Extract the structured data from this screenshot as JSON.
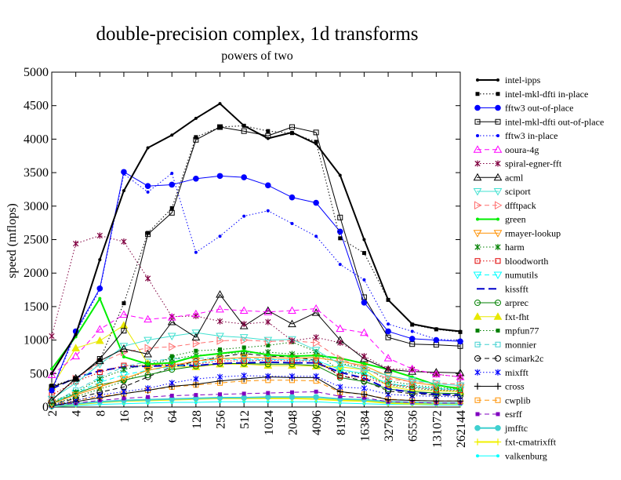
{
  "chart_data": {
    "type": "line",
    "title": "double-precision complex, 1d transforms",
    "subtitle": "powers of two",
    "xlabel": "",
    "ylabel": "speed (mflops)",
    "ylim": [
      0,
      5000
    ],
    "yticks": [
      0,
      500,
      1000,
      1500,
      2000,
      2500,
      3000,
      3500,
      4000,
      4500,
      5000
    ],
    "categories": [
      "2",
      "4",
      "8",
      "16",
      "32",
      "64",
      "128",
      "256",
      "512",
      "1024",
      "2048",
      "4096",
      "8192",
      "16384",
      "32768",
      "65536",
      "131072",
      "262144"
    ],
    "grid": false,
    "legend_position": "right",
    "series": [
      {
        "name": "intel-ipps",
        "color": "#000000",
        "dash": "solid",
        "width": 2,
        "marker": "dot",
        "values": [
          500,
          1080,
          2200,
          3230,
          3870,
          4060,
          4310,
          4530,
          4200,
          4010,
          4100,
          3930,
          3460,
          2500,
          1600,
          1240,
          1170,
          1130
        ]
      },
      {
        "name": "intel-mkl-dfti in-place",
        "color": "#000000",
        "dash": "dot",
        "width": 1,
        "marker": "square-filled",
        "values": [
          320,
          420,
          700,
          1550,
          2600,
          2970,
          4030,
          4180,
          4200,
          4120,
          4090,
          3960,
          2520,
          2300,
          1600,
          1230,
          1160,
          1120
        ]
      },
      {
        "name": "fftw3 out-of-place",
        "color": "#0000ff",
        "dash": "solid",
        "width": 1,
        "marker": "circle-filled",
        "values": [
          250,
          1130,
          1770,
          3510,
          3300,
          3320,
          3410,
          3450,
          3430,
          3310,
          3130,
          3050,
          2620,
          1560,
          1130,
          1020,
          1000,
          980
        ]
      },
      {
        "name": "intel-mkl-dfti out-of-place",
        "color": "#000000",
        "dash": "solid",
        "width": 1,
        "marker": "square-open",
        "values": [
          300,
          420,
          720,
          1140,
          2580,
          2900,
          3990,
          4180,
          4120,
          4050,
          4180,
          4100,
          2830,
          1640,
          1040,
          940,
          930,
          910
        ]
      },
      {
        "name": "fftw3 in-place",
        "color": "#0000ff",
        "dash": "dot",
        "width": 1,
        "marker": "dot",
        "values": [
          240,
          1100,
          1750,
          3480,
          3210,
          3490,
          2310,
          2550,
          2850,
          2930,
          2740,
          2550,
          2130,
          1900,
          1240,
          1130,
          1010,
          1000
        ]
      },
      {
        "name": "ooura-4g",
        "color": "#ff00ff",
        "dash": "dash",
        "width": 1,
        "marker": "triangle-open",
        "values": [
          480,
          760,
          1160,
          1380,
          1310,
          1340,
          1390,
          1460,
          1440,
          1420,
          1440,
          1470,
          1170,
          1110,
          730,
          570,
          490,
          450
        ]
      },
      {
        "name": "spiral-egner-fft",
        "color": "#800040",
        "dash": "dot",
        "width": 1,
        "marker": "star",
        "values": [
          1060,
          2440,
          2560,
          2470,
          1920,
          1350,
          1360,
          1280,
          1240,
          1270,
          990,
          1040,
          960,
          760,
          570,
          560,
          490,
          450
        ]
      },
      {
        "name": "acml",
        "color": "#000000",
        "dash": "solid",
        "width": 1,
        "marker": "triangle-open",
        "values": [
          100,
          430,
          690,
          870,
          790,
          1270,
          1040,
          1680,
          1210,
          1440,
          1240,
          1410,
          1000,
          720,
          560,
          530,
          520,
          510
        ]
      },
      {
        "name": "sciport",
        "color": "#40e0d0",
        "dash": "solid",
        "width": 1,
        "marker": "triangle-down-open",
        "values": [
          120,
          360,
          640,
          910,
          1000,
          1060,
          1110,
          1060,
          1040,
          1000,
          1010,
          850,
          640,
          560,
          470,
          400,
          350,
          320
        ]
      },
      {
        "name": "dfftpack",
        "color": "#ff6f6f",
        "dash": "dash",
        "width": 1,
        "marker": "triangle-right-open",
        "values": [
          110,
          420,
          660,
          820,
          880,
          900,
          950,
          990,
          1000,
          980,
          990,
          960,
          720,
          580,
          420,
          380,
          360,
          340
        ]
      },
      {
        "name": "green",
        "color": "#00ee00",
        "dash": "solid",
        "width": 2,
        "marker": "dot",
        "values": [
          570,
          1050,
          1620,
          750,
          640,
          660,
          760,
          800,
          840,
          780,
          760,
          770,
          730,
          650,
          560,
          450,
          330,
          270
        ]
      },
      {
        "name": "rmayer-lookup",
        "color": "#ff9000",
        "dash": "solid",
        "width": 1,
        "marker": "triangle-down-open",
        "values": [
          50,
          180,
          300,
          420,
          550,
          620,
          690,
          720,
          740,
          740,
          730,
          740,
          680,
          620,
          460,
          370,
          320,
          290
        ]
      },
      {
        "name": "harm",
        "color": "#008000",
        "dash": "dot",
        "width": 1,
        "marker": "star",
        "values": [
          80,
          220,
          420,
          560,
          640,
          720,
          770,
          800,
          810,
          820,
          790,
          820,
          650,
          600,
          390,
          330,
          290,
          270
        ]
      },
      {
        "name": "bloodworth",
        "color": "#e00000",
        "dash": "dot",
        "width": 1,
        "marker": "square-open",
        "values": [
          180,
          380,
          520,
          620,
          620,
          640,
          640,
          690,
          690,
          700,
          690,
          690,
          460,
          440,
          340,
          300,
          260,
          250
        ]
      },
      {
        "name": "numutils",
        "color": "#00ffff",
        "dash": "dash",
        "width": 1,
        "marker": "triangle-down-open",
        "values": [
          60,
          210,
          370,
          480,
          550,
          600,
          650,
          720,
          700,
          710,
          710,
          700,
          560,
          500,
          350,
          310,
          270,
          260
        ]
      },
      {
        "name": "kissfft",
        "color": "#0000cc",
        "dash": "longdash",
        "width": 2,
        "marker": "none",
        "values": [
          270,
          440,
          540,
          600,
          610,
          620,
          620,
          650,
          660,
          670,
          660,
          660,
          520,
          430,
          270,
          220,
          190,
          180
        ]
      },
      {
        "name": "arprec",
        "color": "#008000",
        "dash": "solid",
        "width": 1,
        "marker": "circle-open",
        "values": [
          60,
          200,
          330,
          400,
          480,
          560,
          610,
          650,
          650,
          640,
          640,
          620,
          440,
          380,
          270,
          230,
          210,
          200
        ]
      },
      {
        "name": "fxt-fht",
        "color": "#e8e800",
        "dash": "solid",
        "width": 1,
        "marker": "triangle-filled",
        "values": [
          300,
          880,
          990,
          1220,
          650,
          600,
          600,
          640,
          640,
          620,
          620,
          610,
          600,
          560,
          310,
          250,
          240,
          230
        ]
      },
      {
        "name": "mpfun77",
        "color": "#008000",
        "dash": "dot",
        "width": 1,
        "marker": "square-filled",
        "values": [
          40,
          150,
          270,
          380,
          560,
          760,
          840,
          860,
          890,
          920,
          970,
          830,
          530,
          490,
          330,
          280,
          250,
          240
        ]
      },
      {
        "name": "monnier",
        "color": "#40d0d0",
        "dash": "dash",
        "width": 1,
        "marker": "square-open",
        "values": [
          60,
          250,
          440,
          600,
          680,
          720,
          730,
          730,
          720,
          720,
          700,
          700,
          560,
          500,
          350,
          300,
          280,
          260
        ]
      },
      {
        "name": "scimark2c",
        "color": "#000000",
        "dash": "dash",
        "width": 1,
        "marker": "circle-open",
        "values": [
          40,
          130,
          220,
          300,
          450,
          600,
          680,
          750,
          800,
          760,
          750,
          700,
          470,
          390,
          240,
          200,
          180,
          170
        ]
      },
      {
        "name": "mixfft",
        "color": "#0000ff",
        "dash": "dot",
        "width": 1,
        "marker": "star",
        "values": [
          30,
          100,
          180,
          230,
          280,
          360,
          420,
          450,
          470,
          460,
          460,
          460,
          300,
          280,
          190,
          170,
          160,
          150
        ]
      },
      {
        "name": "cross",
        "color": "#000000",
        "dash": "solid",
        "width": 1,
        "marker": "plus",
        "values": [
          20,
          80,
          140,
          200,
          250,
          310,
          340,
          390,
          420,
          450,
          440,
          440,
          230,
          190,
          110,
          100,
          90,
          90
        ]
      },
      {
        "name": "cwplib",
        "color": "#ff9000",
        "dash": "dash",
        "width": 1,
        "marker": "square-open",
        "values": [
          30,
          100,
          160,
          200,
          250,
          300,
          330,
          360,
          390,
          400,
          400,
          390,
          220,
          190,
          120,
          100,
          90,
          90
        ]
      },
      {
        "name": "esrff",
        "color": "#8000c0",
        "dash": "dash",
        "width": 1,
        "marker": "square-filled",
        "values": [
          20,
          60,
          100,
          130,
          150,
          170,
          180,
          190,
          200,
          210,
          220,
          230,
          160,
          140,
          80,
          70,
          60,
          60
        ]
      },
      {
        "name": "jmfftc",
        "color": "#40d0d0",
        "dash": "solid",
        "width": 2,
        "marker": "circle-filled",
        "values": [
          10,
          50,
          80,
          100,
          110,
          120,
          130,
          140,
          140,
          150,
          150,
          150,
          120,
          110,
          80,
          70,
          60,
          60
        ]
      },
      {
        "name": "fxt-cmatrixfft",
        "color": "#f0f000",
        "dash": "solid",
        "width": 2,
        "marker": "plus",
        "values": [
          10,
          40,
          70,
          90,
          100,
          110,
          120,
          130,
          130,
          130,
          130,
          120,
          100,
          90,
          60,
          50,
          50,
          50
        ]
      },
      {
        "name": "valkenburg",
        "color": "#00ffff",
        "dash": "solid",
        "width": 1,
        "marker": "dot",
        "values": [
          5,
          20,
          40,
          50,
          60,
          70,
          70,
          80,
          80,
          80,
          80,
          80,
          60,
          50,
          40,
          40,
          30,
          30
        ]
      }
    ]
  }
}
